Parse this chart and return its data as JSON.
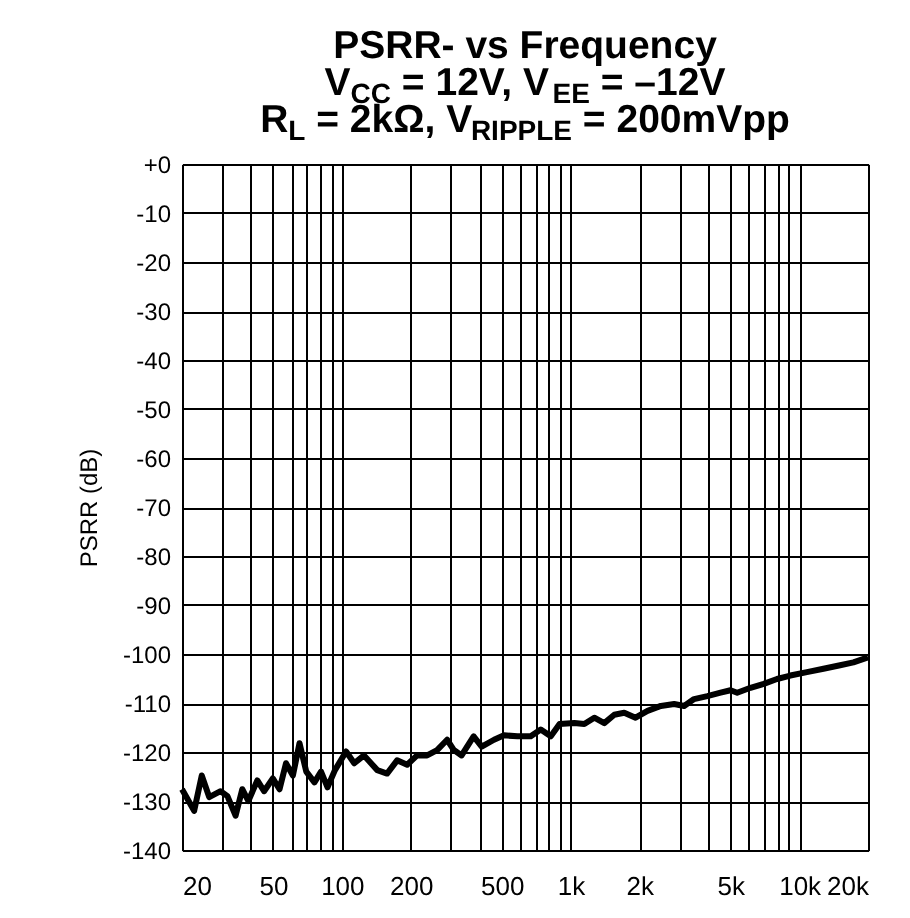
{
  "chart_data": {
    "type": "line",
    "title": [
      "PSRR- vs Frequency",
      "V$_{CC}$ = 12V, V$_{EE}$ = –12V",
      "R$_{L}$ = 2kΩ, V$_{RIPPLE}$ = 200mVpp"
    ],
    "ylabel": "PSRR (dB)",
    "log": "x",
    "grid": true,
    "legend": false,
    "marker": "none",
    "line_style": "solid",
    "x": [
      20,
      22.6,
      24.4,
      26.3,
      29.5,
      31.6,
      34.3,
      36.7,
      39,
      42.7,
      45.7,
      49.9,
      53.4,
      57,
      61.1,
      65.3,
      69.9,
      75.9,
      81.1,
      86.6,
      93.3,
      104.4,
      113.3,
      125,
      142.9,
      157.7,
      174.5,
      193,
      213.4,
      236,
      261,
      288.7,
      309,
      334,
      377,
      409,
      463,
      512,
      586,
      670,
      741,
      820,
      896,
      1039,
      1149,
      1271,
      1405,
      1554,
      1718,
      1925,
      2172,
      2484,
      2840,
      3140,
      3470,
      3966,
      4533,
      5010,
      5357,
      6124,
      7000,
      8000,
      9150,
      10810,
      12770,
      15100,
      17270,
      20000
    ],
    "series": [
      {
        "color": "#000000",
        "values": [
          -127.6,
          -132,
          -124.8,
          -129.2,
          -128,
          -129,
          -133,
          -127.6,
          -130,
          -125.8,
          -128,
          -125.4,
          -127.6,
          -122.3,
          -124.8,
          -118.2,
          -124,
          -126.2,
          -124,
          -127.2,
          -123.7,
          -119.9,
          -122.3,
          -120.7,
          -123.7,
          -124.4,
          -121.7,
          -122.6,
          -120.7,
          -120.7,
          -119.6,
          -117.5,
          -119.6,
          -120.7,
          -116.8,
          -118.9,
          -117.5,
          -116.6,
          -116.8,
          -116.8,
          -115.4,
          -116.8,
          -114.3,
          -114.1,
          -114.3,
          -113,
          -114.1,
          -112.4,
          -112,
          -113,
          -111.6,
          -110.6,
          -110.2,
          -110.6,
          -109.2,
          -108.6,
          -107.9,
          -107.4,
          -107.9,
          -106.9,
          -106.1,
          -105.1,
          -104.4,
          -103.7,
          -103,
          -102.3,
          -101.7,
          -100.7
        ]
      }
    ],
    "xlim": [
      20,
      20000
    ],
    "xticks": [
      20,
      {
        "value": 30,
        "label": null
      },
      {
        "value": 40,
        "label": null
      },
      50,
      {
        "value": 60,
        "label": null
      },
      {
        "value": 70,
        "label": null
      },
      {
        "value": 80,
        "label": null
      },
      {
        "value": 90,
        "label": null
      },
      100,
      200,
      {
        "value": 300,
        "label": null
      },
      {
        "value": 400,
        "label": null
      },
      500,
      {
        "value": 600,
        "label": null
      },
      {
        "value": 700,
        "label": null
      },
      {
        "value": 800,
        "label": null
      },
      {
        "value": 900,
        "label": null
      },
      {
        "value": 1000,
        "label": "1k"
      },
      {
        "value": 2000,
        "label": "2k"
      },
      {
        "value": 3000,
        "label": null
      },
      {
        "value": 4000,
        "label": null
      },
      {
        "value": 5000,
        "label": "5k"
      },
      {
        "value": 6000,
        "label": null
      },
      {
        "value": 7000,
        "label": null
      },
      {
        "value": 8000,
        "label": null
      },
      {
        "value": 9000,
        "label": null
      },
      {
        "value": 10000,
        "label": "10k"
      },
      {
        "value": 20000,
        "label": "20k"
      }
    ],
    "ylim": [
      -140,
      0
    ],
    "yticks": [
      {
        "value": 0,
        "label": "+0"
      },
      -10,
      -20,
      -30,
      -40,
      -50,
      -60,
      -70,
      -80,
      -90,
      -100,
      -110,
      -120,
      -130,
      -140
    ]
  }
}
